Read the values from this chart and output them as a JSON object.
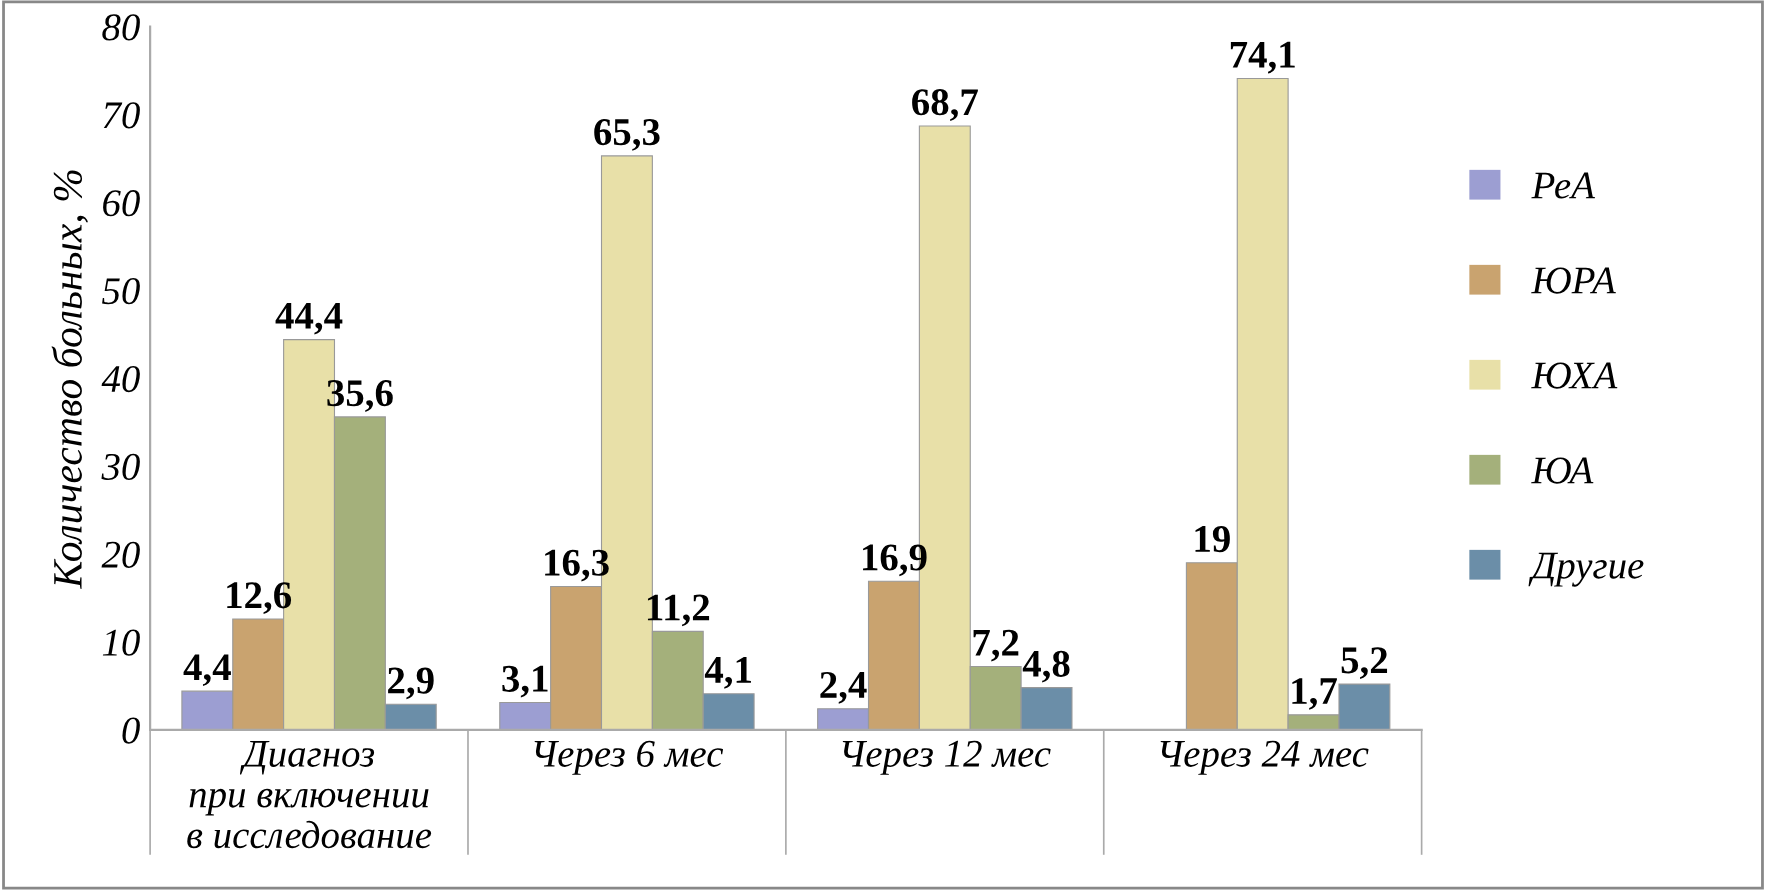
{
  "chart_data": {
    "type": "bar",
    "ylabel": "Количество больных, %",
    "categories": [
      "Диагноз\nпри включении\nв исследование",
      "Через 6 мес",
      "Через 12 мес",
      "Через 24 мес"
    ],
    "series": [
      {
        "name": "РеА",
        "color": "#9c9ed2",
        "values": [
          4.4,
          3.1,
          2.4,
          null
        ],
        "value_labels": [
          "4,4",
          "3,1",
          "2,4",
          null
        ]
      },
      {
        "name": "ЮРА",
        "color": "#c9a36f",
        "values": [
          12.6,
          16.3,
          16.9,
          19
        ],
        "value_labels": [
          "12,6",
          "16,3",
          "16,9",
          "19"
        ]
      },
      {
        "name": "ЮХА",
        "color": "#e8e0a8",
        "values": [
          44.4,
          65.3,
          68.7,
          74.1
        ],
        "value_labels": [
          "44,4",
          "65,3",
          "68,7",
          "74,1"
        ]
      },
      {
        "name": "ЮА",
        "color": "#a4b07b",
        "values": [
          35.6,
          11.2,
          7.2,
          1.7
        ],
        "value_labels": [
          "35,6",
          "11,2",
          "7,2",
          "1,7"
        ]
      },
      {
        "name": "Другие",
        "color": "#6b8ea8",
        "values": [
          2.9,
          4.1,
          4.8,
          5.2
        ],
        "value_labels": [
          "2,9",
          "4,1",
          "4,8",
          "5,2"
        ]
      }
    ],
    "ylim": [
      0,
      80
    ],
    "yticks": [
      0,
      10,
      20,
      30,
      40,
      50,
      60,
      70,
      80
    ],
    "legend": "right",
    "grid": false
  }
}
